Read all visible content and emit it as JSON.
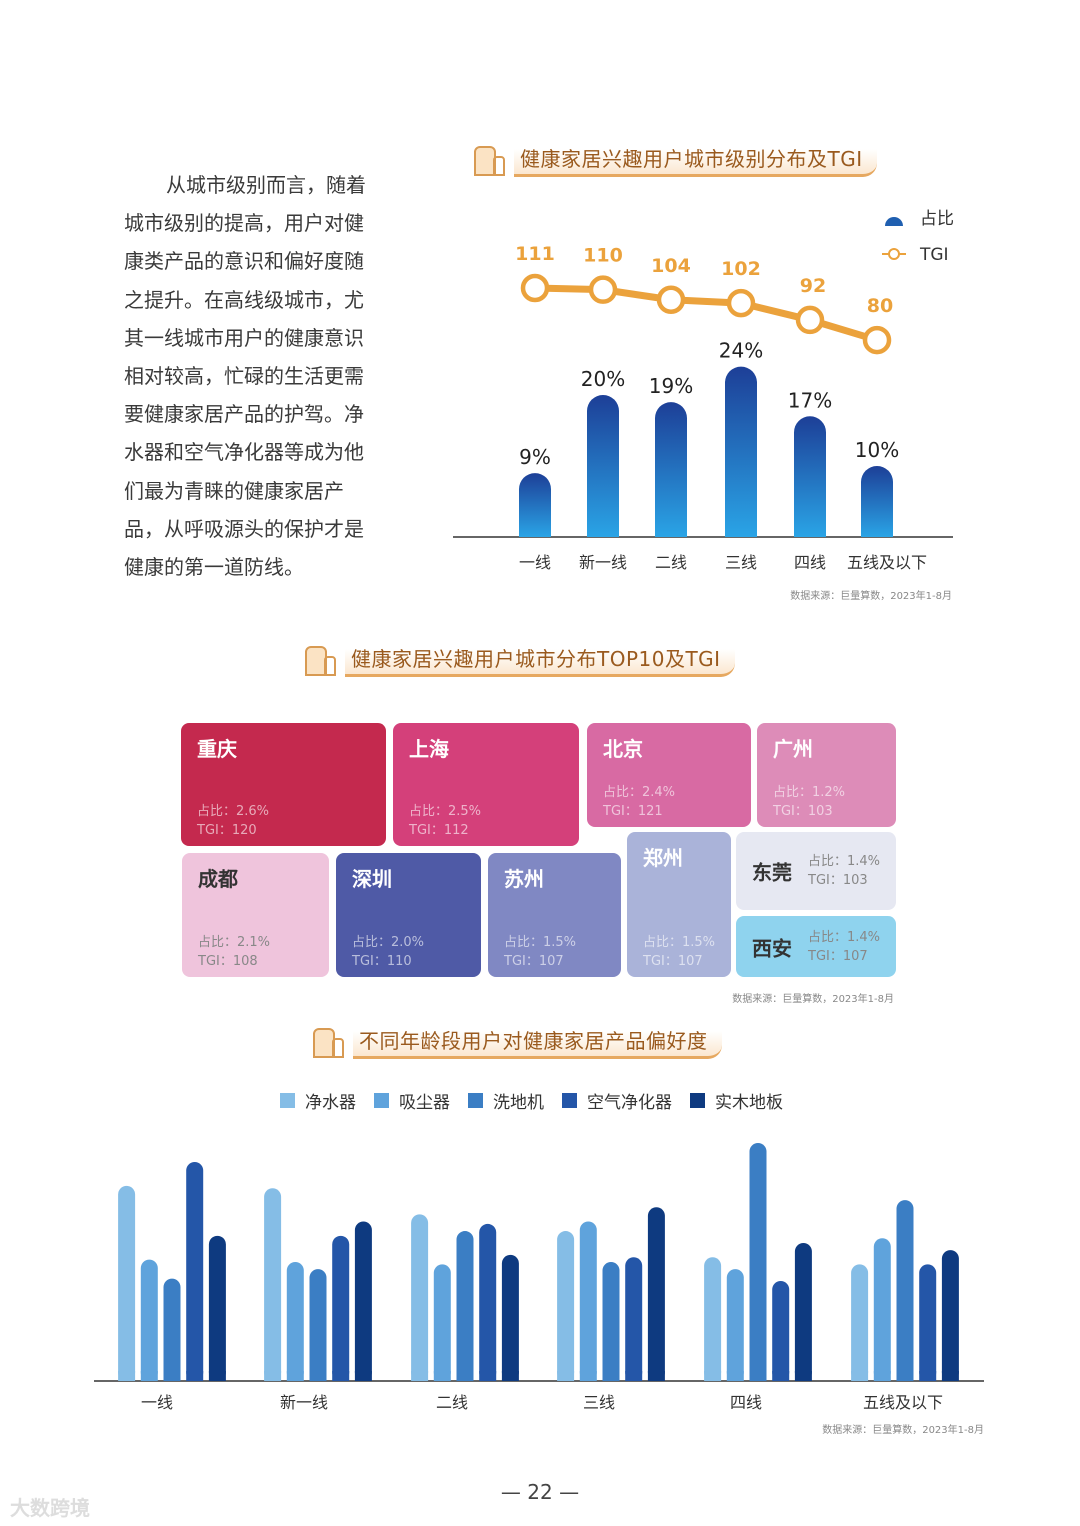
{
  "paragraph_lines": [
    "从城市级别而言，随着",
    "城市级别的提高，用户对健",
    "康类产品的意识和偏好度随",
    "之提升。在高线级城市，尤",
    "其一线城市用户的健康意识",
    "相对较高，忙碌的生活更需",
    "要健康家居产品的护驾。净",
    "水器和空气净化器等成为他",
    "们最为青睐的健康家居产",
    "品，从呼吸源头的保护才是",
    "健康的第一道防线。"
  ],
  "source_text": "数据来源：巨量算数，2023年1-8月",
  "page_number": "— 22 —",
  "watermark": "大数跨境",
  "charts": {
    "c1_title": "健康家居兴趣用户城市级别分布及TGI",
    "c2_title": "健康家居兴趣用户城市分布TOP10及TGI",
    "c3_title": "不同年龄段用户对健康家居产品偏好度"
  },
  "chart_data": [
    {
      "type": "bar+line",
      "title": "健康家居兴趣用户城市级别分布及TGI",
      "categories": [
        "一线",
        "新一线",
        "二线",
        "三线",
        "四线",
        "五线及以下"
      ],
      "series": [
        {
          "name": "占比",
          "type": "bar",
          "values": [
            9,
            20,
            19,
            24,
            17,
            10
          ],
          "labels": [
            "9%",
            "20%",
            "19%",
            "24%",
            "17%",
            "10%"
          ],
          "color": "#1f5fb0"
        },
        {
          "name": "TGI",
          "type": "line",
          "values": [
            111,
            110,
            104,
            102,
            92,
            80
          ],
          "labels": [
            "111",
            "110",
            "104",
            "102",
            "92",
            "80"
          ],
          "color": "#eba23c"
        }
      ],
      "legend": "top-right",
      "grid": false
    },
    {
      "type": "treemap",
      "title": "健康家居兴趣用户城市分布TOP10及TGI",
      "share_label": "占比：",
      "tgi_label": "TGI：",
      "items": [
        {
          "city": "重庆",
          "share": "2.6%",
          "tgi": "120",
          "color": "#c4294e"
        },
        {
          "city": "上海",
          "share": "2.5%",
          "tgi": "112",
          "color": "#d4407a"
        },
        {
          "city": "北京",
          "share": "2.4%",
          "tgi": "121",
          "color": "#d86aa3"
        },
        {
          "city": "广州",
          "share": "1.2%",
          "tgi": "103",
          "color": "#dd8cb8"
        },
        {
          "city": "成都",
          "share": "2.1%",
          "tgi": "108",
          "color": "#efc4dc"
        },
        {
          "city": "深圳",
          "share": "2.0%",
          "tgi": "110",
          "color": "#4f5aa6"
        },
        {
          "city": "苏州",
          "share": "1.5%",
          "tgi": "107",
          "color": "#8088c3"
        },
        {
          "city": "郑州",
          "share": "1.5%",
          "tgi": "107",
          "color": "#aab3d9"
        },
        {
          "city": "东莞",
          "share": "1.4%",
          "tgi": "103",
          "color": "#e6e8f2"
        },
        {
          "city": "西安",
          "share": "1.4%",
          "tgi": "107",
          "color": "#8fd3ee"
        }
      ]
    },
    {
      "type": "bar",
      "title": "不同年龄段用户对健康家居产品偏好度",
      "categories": [
        "一线",
        "新一线",
        "二线",
        "三线",
        "四线",
        "五线及以下"
      ],
      "series": [
        {
          "name": "净水器",
          "values": [
            82,
            81,
            70,
            63,
            52,
            49
          ],
          "color": "#85bde6"
        },
        {
          "name": "吸尘器",
          "values": [
            51,
            50,
            49,
            67,
            47,
            60
          ],
          "color": "#5fa3dc"
        },
        {
          "name": "洗地机",
          "values": [
            43,
            47,
            63,
            50,
            100,
            76
          ],
          "color": "#3b7ec4"
        },
        {
          "name": "空气净化器",
          "values": [
            92,
            61,
            66,
            52,
            42,
            49
          ],
          "color": "#2456a8"
        },
        {
          "name": "实木地板",
          "values": [
            61,
            67,
            53,
            73,
            58,
            55
          ],
          "color": "#0e3a80"
        }
      ],
      "legend": "top",
      "grid": false,
      "yaxis_shown": false
    }
  ]
}
